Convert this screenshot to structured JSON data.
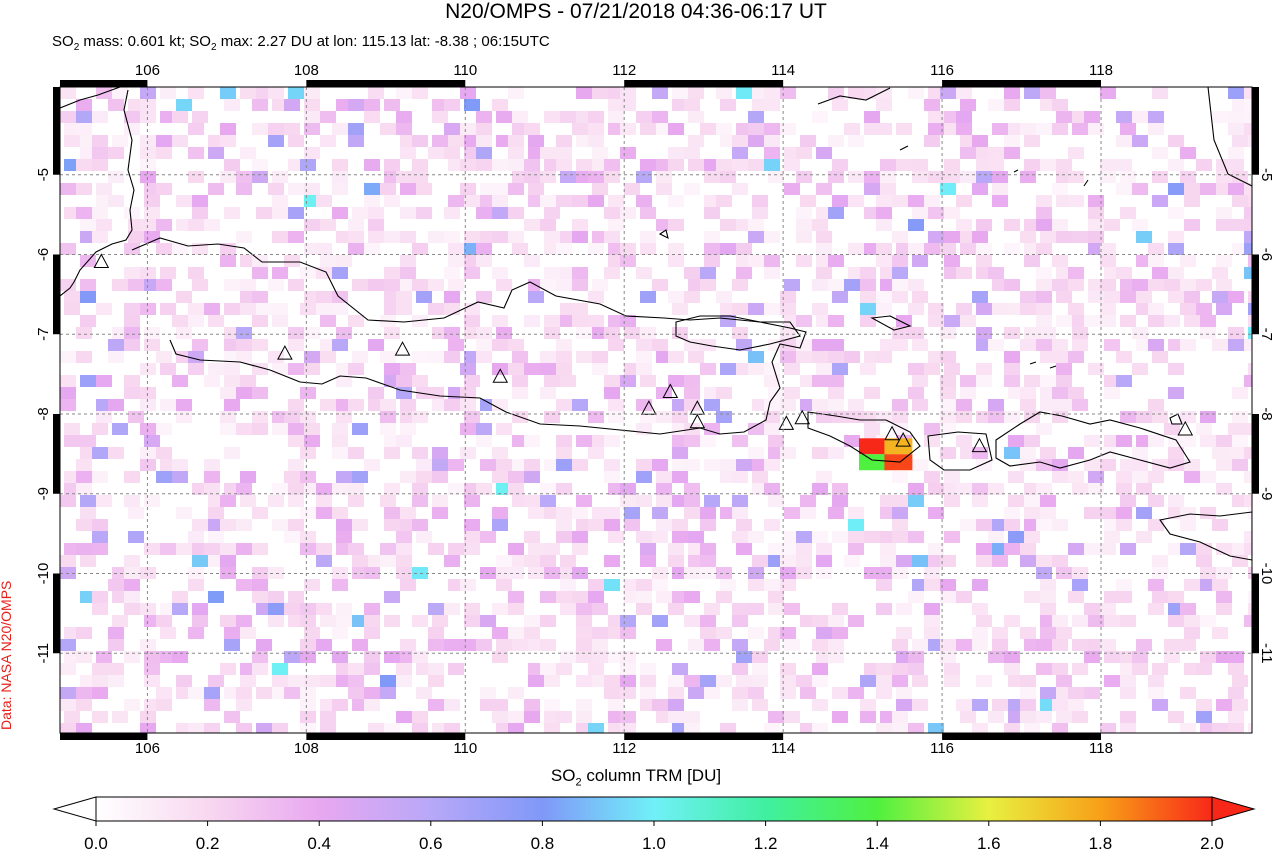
{
  "title": "N20/OMPS - 07/21/2018 04:36-06:17 UT",
  "subtitle": {
    "so2_label": "SO",
    "mass_text": " mass: 0.601 kt; SO",
    "max_text": " max: 2.27 DU at lon: 115.13 lat: -8.38 ; 06:15UTC",
    "sub": "2"
  },
  "credit": "Data: NASA N20/OMPS",
  "map": {
    "lon_range": [
      104.9,
      119.9
    ],
    "lat_range": [
      -12.0,
      -3.9
    ],
    "lon_ticks": [
      "106",
      "108",
      "110",
      "112",
      "114",
      "116",
      "118"
    ],
    "lat_ticks": [
      "-5",
      "-6",
      "-7",
      "-8",
      "-9",
      "-10",
      "-11"
    ],
    "grid": "dashed",
    "volcanoes": [
      [
        105.42,
        -6.1
      ],
      [
        107.73,
        -7.25
      ],
      [
        109.21,
        -7.2
      ],
      [
        110.44,
        -7.54
      ],
      [
        112.31,
        -7.94
      ],
      [
        112.58,
        -7.73
      ],
      [
        112.92,
        -7.94
      ],
      [
        112.92,
        -8.11
      ],
      [
        114.04,
        -8.13
      ],
      [
        114.24,
        -8.06
      ],
      [
        115.37,
        -8.26
      ],
      [
        115.51,
        -8.34
      ],
      [
        116.47,
        -8.41
      ],
      [
        119.06,
        -8.2
      ]
    ],
    "hotspot": [
      {
        "lon": 115.13,
        "lat": -8.38,
        "du": 2.27
      },
      {
        "lon": 115.45,
        "lat": -8.38,
        "du": 1.75
      },
      {
        "lon": 115.13,
        "lat": -8.58,
        "du": 1.4
      },
      {
        "lon": 115.45,
        "lat": -8.58,
        "du": 1.95
      }
    ]
  },
  "colorbar": {
    "label_prefix": "SO",
    "label_sub": "2",
    "label_suffix": " column TRM [DU]",
    "ticks": [
      "0.0",
      "0.2",
      "0.4",
      "0.6",
      "0.8",
      "1.0",
      "1.2",
      "1.4",
      "1.6",
      "1.8",
      "2.0"
    ],
    "range": [
      0.0,
      2.0
    ],
    "colors": [
      "#ffffff",
      "#f8d8f0",
      "#e8a8f0",
      "#b8a8f8",
      "#8098f8",
      "#70f0f8",
      "#40f0a0",
      "#50f040",
      "#e8f040",
      "#f8a018",
      "#f82818"
    ]
  }
}
